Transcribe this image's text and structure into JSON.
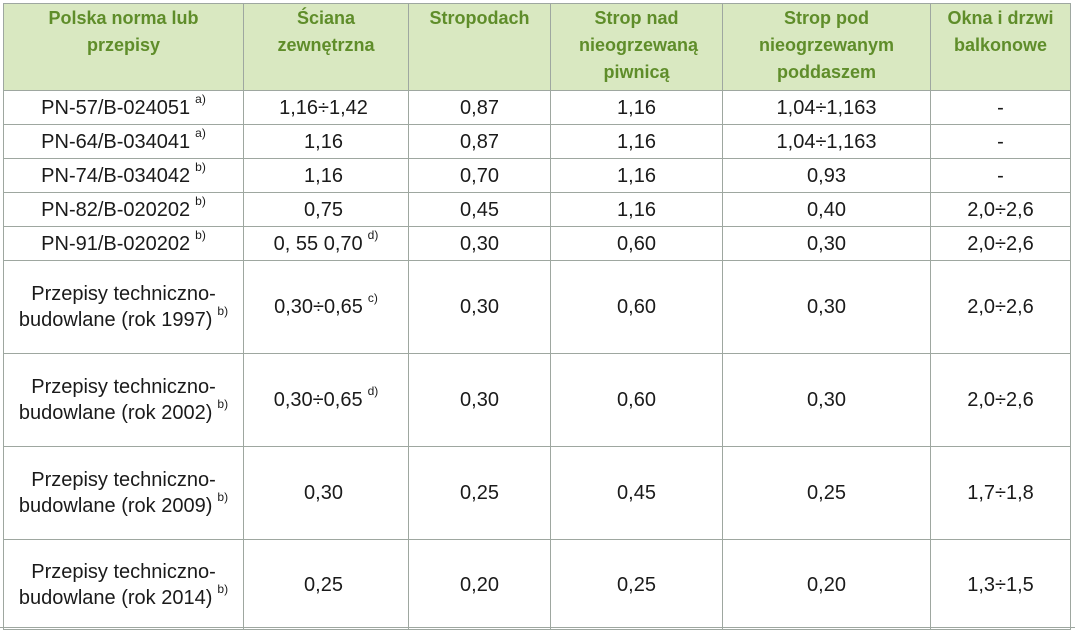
{
  "headers": [
    "Polska norma lub przepisy",
    "Ściana zewnętrzna",
    "Stropodach",
    "Strop nad nieogrzewaną piwnicą",
    "Strop pod nieogrzewanym poddaszem",
    "Okna i drzwi balkonowe"
  ],
  "rows": [
    {
      "norm": "PN-57/B-024051",
      "norm_note": "a)",
      "wall": "1,16÷1,42",
      "wall_note": "",
      "roof": "0,87",
      "basement": "1,16",
      "attic": "1,04÷1,163",
      "windows": "-"
    },
    {
      "norm": "PN-64/B-034041",
      "norm_note": "a)",
      "wall": "1,16",
      "wall_note": "",
      "roof": "0,87",
      "basement": "1,16",
      "attic": "1,04÷1,163",
      "windows": "-"
    },
    {
      "norm": "PN-74/B-034042",
      "norm_note": "b)",
      "wall": "1,16",
      "wall_note": "",
      "roof": "0,70",
      "basement": "1,16",
      "attic": "0,93",
      "windows": "-"
    },
    {
      "norm": "PN-82/B-020202",
      "norm_note": "b)",
      "wall": "0,75",
      "wall_note": "",
      "roof": "0,45",
      "basement": "1,16",
      "attic": "0,40",
      "windows": "2,0÷2,6"
    },
    {
      "norm": "PN-91/B-020202",
      "norm_note": "b)",
      "wall": "0, 55 0,70",
      "wall_note": "d)",
      "roof": "0,30",
      "basement": "0,60",
      "attic": "0,30",
      "windows": "2,0÷2,6"
    },
    {
      "norm": "Przepisy techniczno-budowlane (rok 1997)",
      "norm_note": "b)",
      "wall": "0,30÷0,65",
      "wall_note": "c)",
      "roof": "0,30",
      "basement": "0,60",
      "attic": "0,30",
      "windows": "2,0÷2,6"
    },
    {
      "norm": "Przepisy techniczno-budowlane (rok 2002)",
      "norm_note": "b)",
      "wall": "0,30÷0,65",
      "wall_note": "d)",
      "roof": "0,30",
      "basement": "0,60",
      "attic": "0,30",
      "windows": "2,0÷2,6"
    },
    {
      "norm": "Przepisy techniczno-budowlane (rok 2009)",
      "norm_note": "b)",
      "wall": "0,30",
      "wall_note": "",
      "roof": "0,25",
      "basement": "0,45",
      "attic": "0,25",
      "windows": "1,7÷1,8"
    },
    {
      "norm": "Przepisy techniczno-budowlane (rok 2014)",
      "norm_note": "b)",
      "wall": "0,25",
      "wall_note": "",
      "roof": "0,20",
      "basement": "0,25",
      "attic": "0,20",
      "windows": "1,3÷1,5"
    }
  ],
  "colors": {
    "header_bg": "#d9e8c1",
    "header_text": "#5f8d2a",
    "border": "#9ea7a0"
  }
}
